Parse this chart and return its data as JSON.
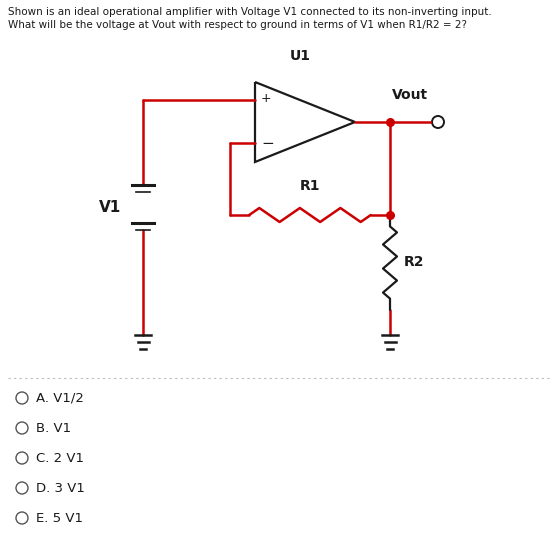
{
  "title_line1": "Shown is an ideal operational amplifier with Voltage V1 connected to its non-inverting input.",
  "title_line2": "What will be the voltage at Vout with respect to ground in terms of V1 when R1/R2 = 2?",
  "label_U1": "U1",
  "label_Vout": "Vout",
  "label_V1": "V1",
  "label_R1": "R1",
  "label_R2": "R2",
  "label_plus": "+",
  "label_minus": "−",
  "choices": [
    "A. V1/2",
    "B. V1",
    "C. 2 V1",
    "D. 3 V1",
    "E. 5 V1"
  ],
  "red_color": "#cc0000",
  "black_color": "#1a1a1a",
  "bg_color": "#ffffff",
  "lw_circuit": 1.6,
  "lw_red": 1.8,
  "sep_color": "#bbbbbb"
}
